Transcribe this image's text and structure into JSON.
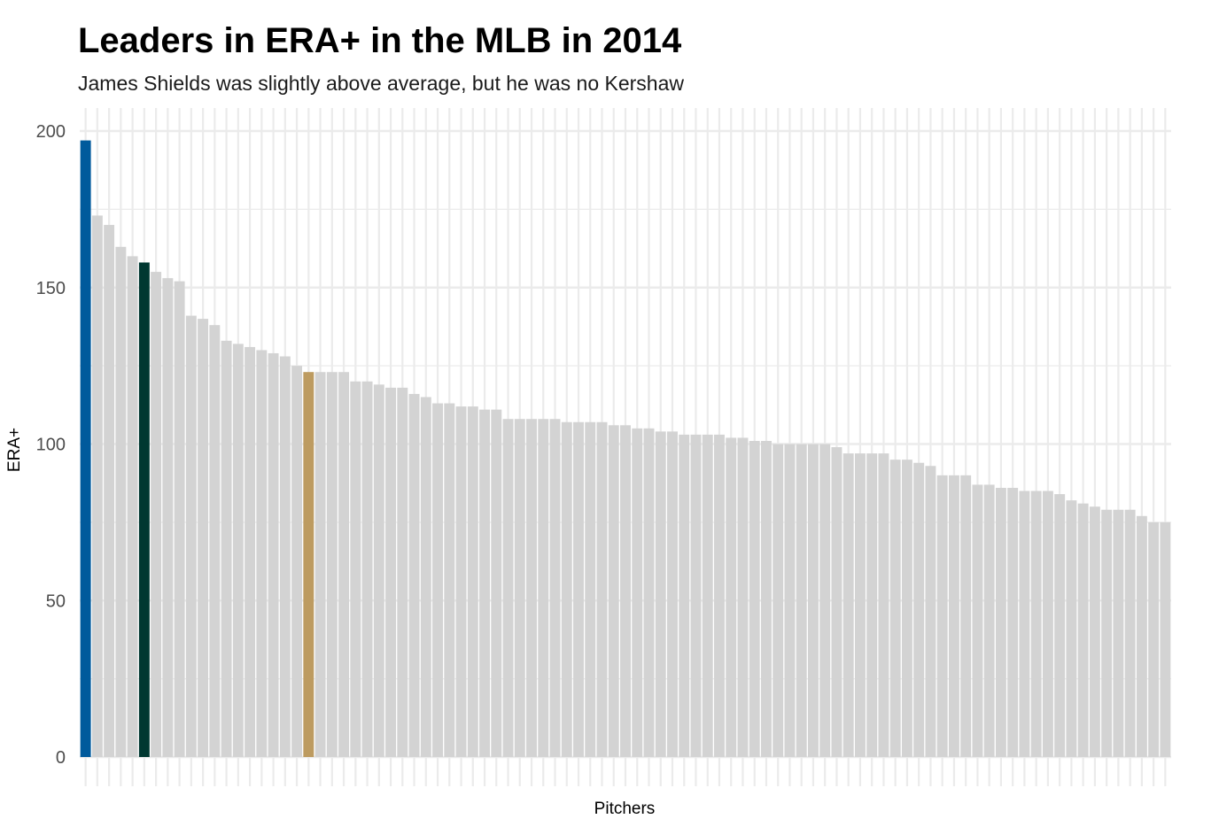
{
  "chart_data": {
    "type": "bar",
    "title": "Leaders in ERA+ in the MLB in 2014",
    "subtitle": "James Shields was slightly above average, but he was no Kershaw",
    "xlabel": "Pitchers",
    "ylabel": "ERA+",
    "ylim": [
      0,
      200
    ],
    "y_ticks": [
      "0",
      "50",
      "100",
      "150",
      "200"
    ],
    "grid": true,
    "legend": "none",
    "default_color": "#d3d3d3",
    "highlight_colors": {
      "0": "#005a9c",
      "5": "#003831",
      "19": "#bd9b60"
    },
    "values": [
      197,
      173,
      170,
      163,
      160,
      158,
      155,
      153,
      152,
      141,
      140,
      138,
      133,
      132,
      131,
      130,
      129,
      128,
      125,
      123,
      123,
      123,
      123,
      120,
      120,
      119,
      118,
      118,
      116,
      115,
      113,
      113,
      112,
      112,
      111,
      111,
      108,
      108,
      108,
      108,
      108,
      107,
      107,
      107,
      107,
      106,
      106,
      105,
      105,
      104,
      104,
      103,
      103,
      103,
      103,
      102,
      102,
      101,
      101,
      100,
      100,
      100,
      100,
      100,
      99,
      97,
      97,
      97,
      97,
      95,
      95,
      94,
      93,
      90,
      90,
      90,
      87,
      87,
      86,
      86,
      85,
      85,
      85,
      84,
      82,
      81,
      80,
      79,
      79,
      79,
      77,
      75,
      75
    ]
  }
}
